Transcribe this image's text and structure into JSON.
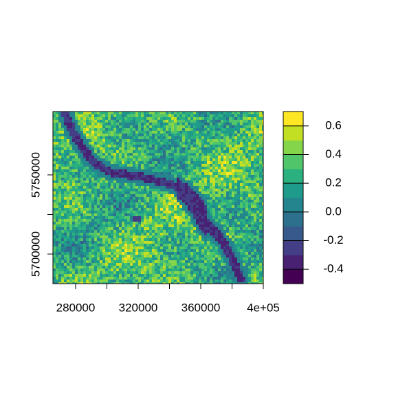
{
  "chart_data": {
    "type": "raster",
    "xlim": [
      265500,
      400000
    ],
    "xticks": [
      280000,
      320000,
      360000,
      {
        "value": 400000,
        "label": "4e+05"
      }
    ],
    "xminor_ticks": [
      300000,
      340000,
      380000
    ],
    "ylim": [
      5681300,
      5790000
    ],
    "yticks": [
      5700000,
      5750000
    ],
    "yminor_ticks": [
      5725000
    ],
    "clim": [
      -0.5,
      0.7
    ],
    "palette": [
      "#440154",
      "#482173",
      "#433E85",
      "#38598C",
      "#2D708E",
      "#25858E",
      "#1E9B8A",
      "#2BB07F",
      "#51C56A",
      "#85D54A",
      "#C2DF23",
      "#FDE725"
    ],
    "cticks": [
      -0.4,
      -0.2,
      {
        "value": 0,
        "label": "0.0"
      },
      0.2,
      0.4,
      0.6
    ]
  }
}
